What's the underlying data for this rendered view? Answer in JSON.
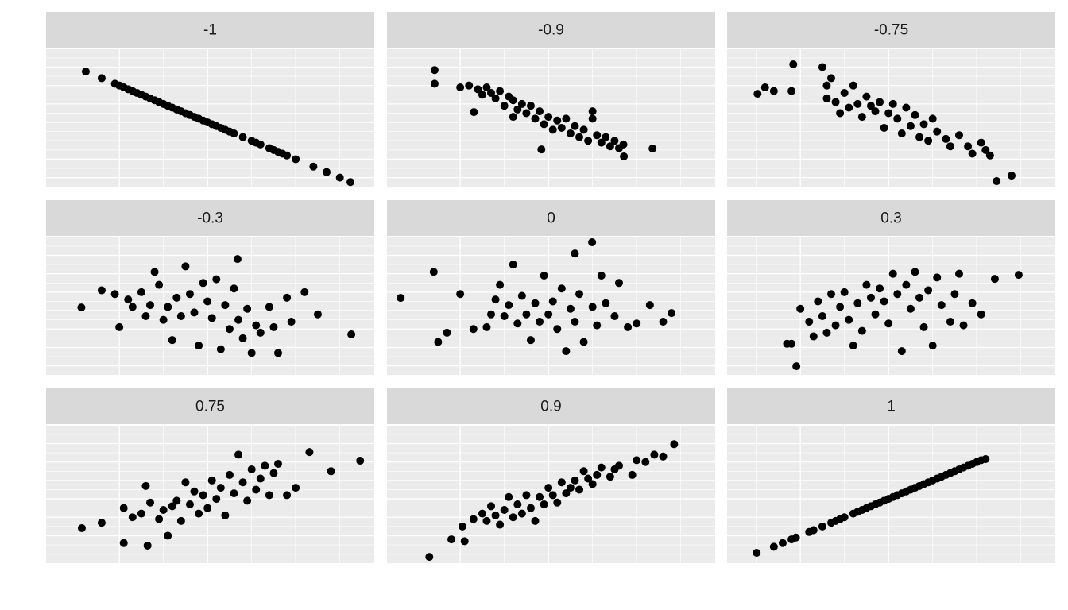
{
  "chart_data": [
    {
      "type": "scatter",
      "title": "-1",
      "color": "#000000",
      "grid": true,
      "xlim": [
        -3.66,
        3.78
      ],
      "ylim": [
        -3.49,
        3.97
      ],
      "xticks": [
        -2,
        0,
        2
      ],
      "yticks": [
        -3,
        -2,
        -1,
        0,
        1,
        2,
        3
      ],
      "xminor": [
        -3,
        -1,
        1,
        3
      ],
      "yminor": [
        -2.5,
        -1.5,
        -0.5,
        0.5,
        1.5,
        2.5,
        3.5
      ],
      "x": [
        -2.76,
        -2.4,
        -2.1,
        -2.0,
        -1.9,
        -1.8,
        -1.7,
        -1.6,
        -1.5,
        -1.4,
        -1.3,
        -1.2,
        -1.1,
        -1.0,
        -0.9,
        -0.8,
        -0.7,
        -0.6,
        -0.5,
        -0.4,
        -0.3,
        -0.2,
        -0.1,
        0,
        0.1,
        0.2,
        0.3,
        0.4,
        0.5,
        0.6,
        0.8,
        1.0,
        1.1,
        1.2,
        1.4,
        1.5,
        1.6,
        1.7,
        1.8,
        2.0,
        2.4,
        2.7,
        3.0,
        3.24
      ],
      "y": [
        2.76,
        2.4,
        2.1,
        2.0,
        1.9,
        1.8,
        1.7,
        1.6,
        1.5,
        1.4,
        1.3,
        1.2,
        1.1,
        1.0,
        0.9,
        0.8,
        0.7,
        0.6,
        0.5,
        0.4,
        0.3,
        0.2,
        0.1,
        0,
        -0.1,
        -0.2,
        -0.3,
        -0.4,
        -0.5,
        -0.6,
        -0.8,
        -1.0,
        -1.1,
        -1.2,
        -1.4,
        -1.5,
        -1.6,
        -1.7,
        -1.8,
        -2.0,
        -2.4,
        -2.7,
        -3.0,
        -3.24
      ]
    },
    {
      "type": "scatter",
      "title": "-0.9",
      "color": "#000000",
      "grid": true,
      "xlim": [
        -3.66,
        3.78
      ],
      "ylim": [
        -3.49,
        3.97
      ],
      "xticks": [
        -2,
        0,
        2
      ],
      "yticks": [
        -3,
        -2,
        -1,
        0,
        1,
        2,
        3
      ],
      "xminor": [
        -3,
        -1,
        1,
        3
      ],
      "yminor": [
        -2.5,
        -1.5,
        -0.5,
        0.5,
        1.5,
        2.5,
        3.5
      ],
      "x": [
        -2.58,
        -2.58,
        -2.0,
        -1.8,
        -1.69,
        -1.6,
        -1.5,
        -1.4,
        -1.3,
        -1.2,
        -1.1,
        -1.0,
        -0.9,
        -0.8,
        -0.8,
        -0.7,
        -0.6,
        -0.5,
        -0.4,
        -0.3,
        -0.2,
        -0.16,
        -0.1,
        0,
        0.1,
        0.2,
        0.3,
        0.4,
        0.5,
        0.6,
        0.7,
        0.8,
        0.9,
        1.0,
        1.0,
        1.1,
        1.2,
        1.3,
        1.4,
        1.5,
        1.6,
        1.7,
        1.71,
        2.36
      ],
      "y": [
        2.84,
        2.1,
        1.9,
        2.0,
        0.56,
        1.8,
        1.5,
        1.9,
        1.6,
        1.3,
        1.7,
        0.9,
        1.4,
        1.2,
        0.3,
        0.7,
        1.0,
        0.5,
        0.9,
        0.2,
        0.6,
        -1.47,
        -0.1,
        0.3,
        -0.4,
        0.1,
        -0.3,
        0.2,
        -0.6,
        -0.2,
        -0.8,
        -0.4,
        -1.0,
        0.2,
        0.6,
        -0.7,
        -1.1,
        -0.8,
        -1.3,
        -1.0,
        -1.4,
        -1.2,
        -1.85,
        -1.42
      ]
    },
    {
      "type": "scatter",
      "title": "-0.75",
      "color": "#000000",
      "grid": true,
      "xlim": [
        -3.66,
        3.78
      ],
      "ylim": [
        -3.49,
        3.97
      ],
      "xticks": [
        -2,
        0,
        2
      ],
      "yticks": [
        -3,
        -2,
        -1,
        0,
        1,
        2,
        3
      ],
      "xminor": [
        -3,
        -1,
        1,
        3
      ],
      "yminor": [
        -2.5,
        -1.5,
        -0.5,
        0.5,
        1.5,
        2.5,
        3.5
      ],
      "x": [
        -2.97,
        -2.8,
        -2.6,
        -2.16,
        -2.2,
        -1.5,
        -1.4,
        -1.4,
        -1.3,
        -1.2,
        -1.1,
        -1.0,
        -0.9,
        -0.8,
        -0.7,
        -0.6,
        -0.5,
        -0.4,
        -0.3,
        -0.2,
        -0.1,
        0,
        0.1,
        0.2,
        0.3,
        0.4,
        0.5,
        0.6,
        0.7,
        0.8,
        0.9,
        1.0,
        1.1,
        1.3,
        1.4,
        1.6,
        1.8,
        1.9,
        2.1,
        2.2,
        2.3,
        2.45,
        2.79
      ],
      "y": [
        1.55,
        1.9,
        1.7,
        3.15,
        1.7,
        3.0,
        1.3,
        2.0,
        2.4,
        1.1,
        0.5,
        1.6,
        0.8,
        2.0,
        1.0,
        0.3,
        1.4,
        0.9,
        0.6,
        1.1,
        -0.3,
        0.5,
        1.0,
        0.2,
        -0.6,
        0.8,
        -0.2,
        0.4,
        -0.8,
        -0.1,
        -1.0,
        0.2,
        -0.5,
        -0.9,
        -1.3,
        -0.7,
        -1.3,
        -1.7,
        -1.1,
        -1.5,
        -1.8,
        -3.19,
        -2.89
      ]
    },
    {
      "type": "scatter",
      "title": "-0.3",
      "color": "#000000",
      "grid": true,
      "xlim": [
        -3.66,
        3.78
      ],
      "ylim": [
        -3.49,
        3.97
      ],
      "xticks": [
        -2,
        0,
        2
      ],
      "yticks": [
        -3,
        -2,
        -1,
        0,
        1,
        2,
        3
      ],
      "xminor": [
        -3,
        -1,
        1,
        3
      ],
      "yminor": [
        -2.5,
        -1.5,
        -0.5,
        0.5,
        1.5,
        2.5,
        3.5
      ],
      "x": [
        -2.86,
        -2.4,
        -2.1,
        -2.0,
        -1.8,
        -1.7,
        -1.5,
        -1.4,
        -1.3,
        -1.2,
        -1.1,
        -1.0,
        -0.9,
        -0.8,
        -0.7,
        -0.6,
        -0.5,
        -0.4,
        -0.3,
        -0.2,
        -0.1,
        0,
        0.1,
        0.2,
        0.3,
        0.4,
        0.5,
        0.6,
        0.68,
        0.7,
        0.8,
        0.9,
        1.0,
        1.1,
        1.2,
        1.4,
        1.5,
        1.6,
        1.8,
        1.9,
        2.2,
        2.5,
        3.26
      ],
      "y": [
        0.17,
        1.1,
        0.9,
        -0.9,
        0.6,
        0.2,
        1.0,
        -0.3,
        0.3,
        2.1,
        1.4,
        -0.5,
        0.2,
        -1.6,
        0.7,
        -0.3,
        2.4,
        0.9,
        -0.1,
        -1.9,
        1.5,
        0.5,
        -0.4,
        1.7,
        -2.1,
        0.3,
        -1.0,
        1.2,
        2.8,
        -0.5,
        -1.5,
        0.1,
        -2.3,
        -0.8,
        -1.2,
        0.2,
        -0.9,
        -2.3,
        0.7,
        -0.6,
        1.0,
        -0.2,
        -1.29
      ]
    },
    {
      "type": "scatter",
      "title": "0",
      "color": "#000000",
      "grid": true,
      "xlim": [
        -3.66,
        3.78
      ],
      "ylim": [
        -3.49,
        3.97
      ],
      "xticks": [
        -2,
        0,
        2
      ],
      "yticks": [
        -3,
        -2,
        -1,
        0,
        1,
        2,
        3
      ],
      "xminor": [
        -3,
        -1,
        1,
        3
      ],
      "yminor": [
        -2.5,
        -1.5,
        -0.5,
        0.5,
        1.5,
        2.5,
        3.5
      ],
      "x": [
        -3.35,
        -2.6,
        -2.5,
        -2.3,
        -2.0,
        -1.7,
        -1.4,
        -1.3,
        -1.2,
        -1.1,
        -1.0,
        -0.9,
        -0.8,
        -0.7,
        -0.6,
        -0.5,
        -0.4,
        -0.3,
        -0.2,
        -0.1,
        0,
        0.1,
        0.2,
        0.3,
        0.4,
        0.5,
        0.6,
        0.6,
        0.7,
        0.8,
        0.99,
        1.0,
        1.1,
        1.2,
        1.3,
        1.5,
        1.6,
        1.8,
        2.0,
        2.3,
        2.6,
        2.79
      ],
      "y": [
        0.69,
        2.1,
        -1.7,
        -1.2,
        0.9,
        -1.0,
        -0.9,
        -0.2,
        0.6,
        1.4,
        -0.3,
        0.3,
        2.5,
        -0.7,
        0.8,
        -0.2,
        -1.6,
        0.4,
        -0.6,
        1.9,
        -0.2,
        0.5,
        -1.0,
        1.2,
        -2.2,
        0.1,
        -0.6,
        3.1,
        0.9,
        -1.7,
        3.71,
        0.2,
        -0.8,
        1.9,
        0.4,
        -0.3,
        1.5,
        -0.9,
        -0.7,
        0.3,
        -0.6,
        -0.13
      ]
    },
    {
      "type": "scatter",
      "title": "0.3",
      "color": "#000000",
      "grid": true,
      "xlim": [
        -3.66,
        3.78
      ],
      "ylim": [
        -3.49,
        3.97
      ],
      "xticks": [
        -2,
        0,
        2
      ],
      "yticks": [
        -3,
        -2,
        -1,
        0,
        1,
        2,
        3
      ],
      "xminor": [
        -3,
        -1,
        1,
        3
      ],
      "yminor": [
        -2.5,
        -1.5,
        -0.5,
        0.5,
        1.5,
        2.5,
        3.5
      ],
      "x": [
        -2.3,
        -2.2,
        -2.09,
        -2.0,
        -1.8,
        -1.7,
        -1.6,
        -1.5,
        -1.4,
        -1.3,
        -1.2,
        -1.1,
        -1.0,
        -0.9,
        -0.8,
        -0.7,
        -0.6,
        -0.5,
        -0.4,
        -0.3,
        -0.2,
        -0.1,
        0,
        0.1,
        0.2,
        0.3,
        0.4,
        0.5,
        0.6,
        0.7,
        0.8,
        0.9,
        1.0,
        1.1,
        1.2,
        1.4,
        1.5,
        1.6,
        1.7,
        1.9,
        2.1,
        2.41,
        2.95
      ],
      "y": [
        -1.8,
        -1.8,
        -3.02,
        0.1,
        -0.6,
        -1.4,
        0.5,
        -0.3,
        -1.2,
        0.9,
        -0.8,
        0.2,
        1.0,
        -0.5,
        -1.9,
        0.4,
        -1.1,
        1.4,
        0.7,
        -0.2,
        1.2,
        0.5,
        -0.7,
        2.0,
        0.9,
        -2.2,
        1.4,
        0.1,
        2.1,
        0.7,
        -0.9,
        1.1,
        -1.9,
        1.8,
        0.3,
        -0.6,
        0.9,
        2.0,
        -0.8,
        0.4,
        -0.2,
        1.72,
        1.94
      ]
    },
    {
      "type": "scatter",
      "title": "0.75",
      "color": "#000000",
      "grid": true,
      "xlim": [
        -3.66,
        3.78
      ],
      "ylim": [
        -3.49,
        3.97
      ],
      "xticks": [
        -2,
        0,
        2
      ],
      "yticks": [
        -3,
        -2,
        -1,
        0,
        1,
        2,
        3
      ],
      "xminor": [
        -3,
        -1,
        1,
        3
      ],
      "yminor": [
        -2.5,
        -1.5,
        -0.5,
        0.5,
        1.5,
        2.5,
        3.5
      ],
      "x": [
        -2.85,
        -2.4,
        -1.9,
        -1.9,
        -1.7,
        -1.5,
        -1.4,
        -1.36,
        -1.3,
        -1.1,
        -1.0,
        -0.9,
        -0.8,
        -0.7,
        -0.6,
        -0.5,
        -0.4,
        -0.3,
        -0.2,
        -0.1,
        0,
        0.1,
        0.2,
        0.3,
        0.4,
        0.5,
        0.6,
        0.7,
        0.8,
        0.9,
        1.0,
        1.1,
        1.2,
        1.3,
        1.4,
        1.5,
        1.6,
        1.8,
        2.0,
        2.31,
        2.8,
        3.46
      ],
      "y": [
        -1.59,
        -1.3,
        -0.5,
        -2.4,
        -1.0,
        -0.8,
        0.7,
        -2.54,
        -0.2,
        -1.1,
        -0.6,
        -2.0,
        -0.4,
        -0.1,
        -1.2,
        0.9,
        -0.3,
        0.4,
        -0.8,
        0.2,
        -0.5,
        1.0,
        0,
        0.6,
        -0.9,
        1.3,
        0.3,
        2.4,
        0.9,
        -0.1,
        1.6,
        0.5,
        1.1,
        1.8,
        0.2,
        1.4,
        1.9,
        0.2,
        0.6,
        2.54,
        1.5,
        2.07
      ]
    },
    {
      "type": "scatter",
      "title": "0.9",
      "color": "#000000",
      "grid": true,
      "xlim": [
        -3.66,
        3.78
      ],
      "ylim": [
        -3.49,
        3.97
      ],
      "xticks": [
        -2,
        0,
        2
      ],
      "yticks": [
        -3,
        -2,
        -1,
        0,
        1,
        2,
        3
      ],
      "xminor": [
        -3,
        -1,
        1,
        3
      ],
      "yminor": [
        -2.5,
        -1.5,
        -0.5,
        0.5,
        1.5,
        2.5,
        3.5
      ],
      "x": [
        -2.7,
        -2.2,
        -1.95,
        -1.9,
        -1.7,
        -1.5,
        -1.4,
        -1.3,
        -1.2,
        -1.1,
        -1.0,
        -0.9,
        -0.8,
        -0.7,
        -0.6,
        -0.5,
        -0.4,
        -0.3,
        -0.2,
        -0.1,
        0,
        0.1,
        0.2,
        0.3,
        0.4,
        0.5,
        0.6,
        0.7,
        0.8,
        0.9,
        1.0,
        1.1,
        1.2,
        1.4,
        1.5,
        1.6,
        1.9,
        2.0,
        2.2,
        2.4,
        2.6,
        2.85
      ],
      "y": [
        -3.15,
        -2.2,
        -1.5,
        -2.3,
        -1.1,
        -0.8,
        -1.2,
        -0.4,
        -0.9,
        -1.4,
        -0.6,
        0.1,
        -1.0,
        -0.3,
        -0.8,
        0.2,
        -0.5,
        -1.2,
        0.1,
        -0.3,
        0.6,
        0.2,
        -0.2,
        0.9,
        0.3,
        0.6,
        1.0,
        0.5,
        1.5,
        1.1,
        0.8,
        1.3,
        1.7,
        1.2,
        1.6,
        1.8,
        1.3,
        2.1,
        2.0,
        2.4,
        2.3,
        2.97
      ]
    },
    {
      "type": "scatter",
      "title": "1",
      "color": "#000000",
      "grid": true,
      "xlim": [
        -3.66,
        3.78
      ],
      "ylim": [
        -3.49,
        3.97
      ],
      "xticks": [
        -2,
        0,
        2
      ],
      "yticks": [
        -3,
        -2,
        -1,
        0,
        1,
        2,
        3
      ],
      "xminor": [
        -3,
        -1,
        1,
        3
      ],
      "yminor": [
        -2.5,
        -1.5,
        -0.5,
        0.5,
        1.5,
        2.5,
        3.5
      ],
      "x": [
        -2.99,
        -2.6,
        -2.4,
        -2.2,
        -2.1,
        -1.8,
        -1.7,
        -1.5,
        -1.3,
        -1.2,
        -1.1,
        -1.0,
        -0.8,
        -0.7,
        -0.6,
        -0.5,
        -0.4,
        -0.3,
        -0.2,
        -0.1,
        0,
        0.1,
        0.2,
        0.3,
        0.4,
        0.5,
        0.6,
        0.7,
        0.8,
        0.9,
        1.0,
        1.1,
        1.2,
        1.3,
        1.4,
        1.5,
        1.6,
        1.7,
        1.8,
        1.9,
        2.0,
        2.1,
        2.2
      ],
      "y": [
        -2.93,
        -2.6,
        -2.4,
        -2.2,
        -2.1,
        -1.8,
        -1.7,
        -1.5,
        -1.3,
        -1.2,
        -1.1,
        -1.0,
        -0.8,
        -0.7,
        -0.6,
        -0.5,
        -0.4,
        -0.3,
        -0.2,
        -0.1,
        0,
        0.1,
        0.2,
        0.3,
        0.4,
        0.5,
        0.6,
        0.7,
        0.8,
        0.9,
        1.0,
        1.1,
        1.2,
        1.3,
        1.4,
        1.5,
        1.6,
        1.7,
        1.8,
        1.9,
        2.0,
        2.1,
        2.16
      ]
    }
  ]
}
